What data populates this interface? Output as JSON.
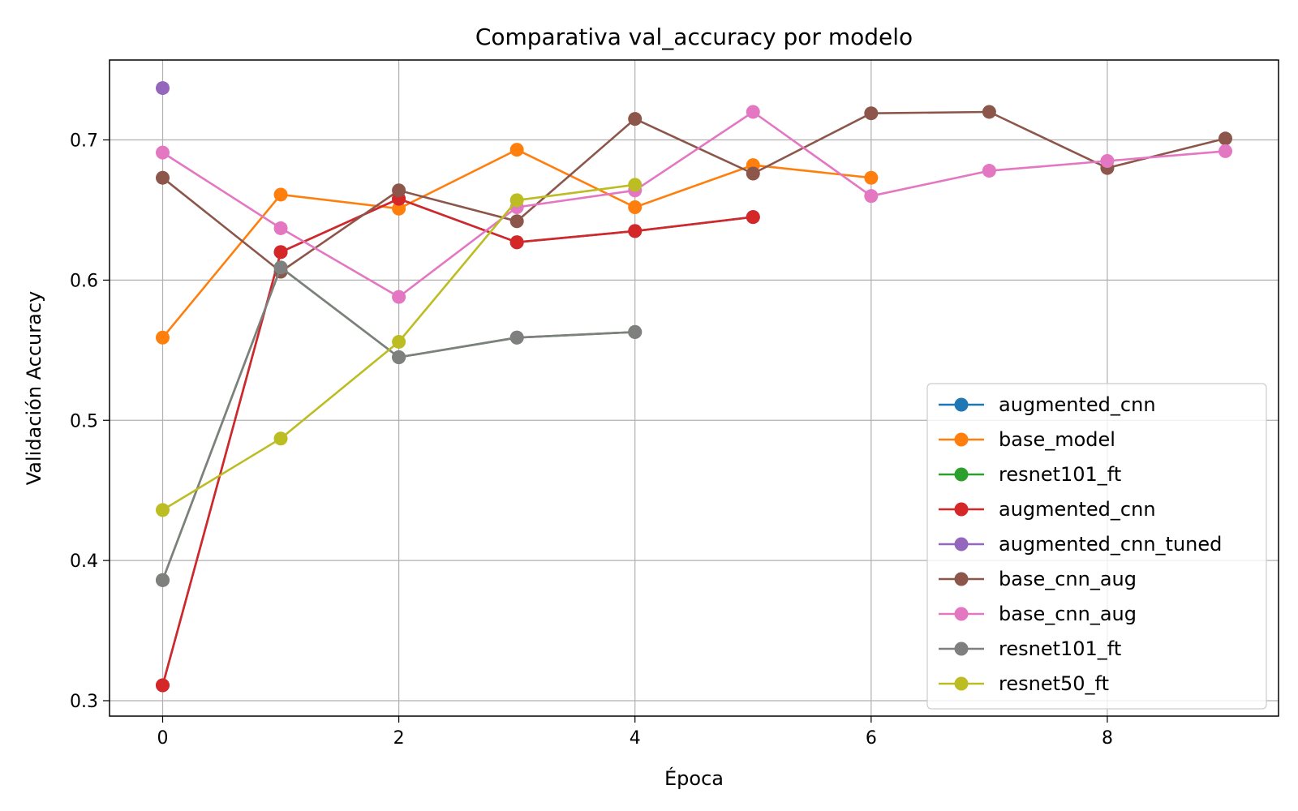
{
  "chart_data": {
    "type": "line",
    "title": "Comparativa val_accuracy por modelo",
    "xlabel": "Época",
    "ylabel": "Validación Accuracy",
    "xlim": [
      -0.45,
      9.45
    ],
    "ylim": [
      0.289,
      0.757
    ],
    "xticks": [
      0,
      2,
      4,
      6,
      8
    ],
    "yticks": [
      0.3,
      0.4,
      0.5,
      0.6,
      0.7
    ],
    "xtick_labels": [
      "0",
      "2",
      "4",
      "6",
      "8"
    ],
    "ytick_labels": [
      "0.3",
      "0.4",
      "0.5",
      "0.6",
      "0.7"
    ],
    "grid": true,
    "legend_position": "lower right",
    "series": [
      {
        "name": "augmented_cnn",
        "color": "#1f77b4",
        "x": [
          0,
          1,
          2,
          3,
          4,
          5
        ],
        "values": [
          0.311,
          0.62,
          0.658,
          0.627,
          0.635,
          0.645
        ]
      },
      {
        "name": "base_model",
        "color": "#ff7f0e",
        "x": [
          0,
          1,
          2,
          3,
          4,
          5,
          6
        ],
        "values": [
          0.559,
          0.661,
          0.651,
          0.693,
          0.652,
          0.682,
          0.673
        ]
      },
      {
        "name": "resnet101_ft",
        "color": "#2ca02c",
        "x": [
          0,
          1,
          2,
          3,
          4
        ],
        "values": [
          0.386,
          0.609,
          0.545,
          0.559,
          0.563
        ]
      },
      {
        "name": "augmented_cnn",
        "color": "#d62728",
        "x": [
          0,
          1,
          2,
          3,
          4,
          5
        ],
        "values": [
          0.311,
          0.62,
          0.658,
          0.627,
          0.635,
          0.645
        ]
      },
      {
        "name": "augmented_cnn_tuned",
        "color": "#9467bd",
        "x": [
          0
        ],
        "values": [
          0.737
        ]
      },
      {
        "name": "base_cnn_aug",
        "color": "#8c564b",
        "x": [
          0,
          1,
          2,
          3,
          4,
          5,
          6,
          7,
          8,
          9
        ],
        "values": [
          0.673,
          0.606,
          0.664,
          0.642,
          0.715,
          0.676,
          0.719,
          0.72,
          0.68,
          0.701
        ]
      },
      {
        "name": "base_cnn_aug",
        "color": "#e377c2",
        "x": [
          0,
          1,
          2,
          3,
          4,
          5,
          6,
          7,
          8,
          9
        ],
        "values": [
          0.691,
          0.637,
          0.588,
          0.652,
          0.664,
          0.72,
          0.66,
          0.678,
          0.685,
          0.692
        ]
      },
      {
        "name": "resnet101_ft",
        "color": "#7f7f7f",
        "x": [
          0,
          1,
          2,
          3,
          4
        ],
        "values": [
          0.386,
          0.609,
          0.545,
          0.559,
          0.563
        ]
      },
      {
        "name": "resnet50_ft",
        "color": "#bcbd22",
        "x": [
          0,
          1,
          2,
          3,
          4
        ],
        "values": [
          0.436,
          0.487,
          0.556,
          0.657,
          0.668
        ]
      }
    ]
  }
}
